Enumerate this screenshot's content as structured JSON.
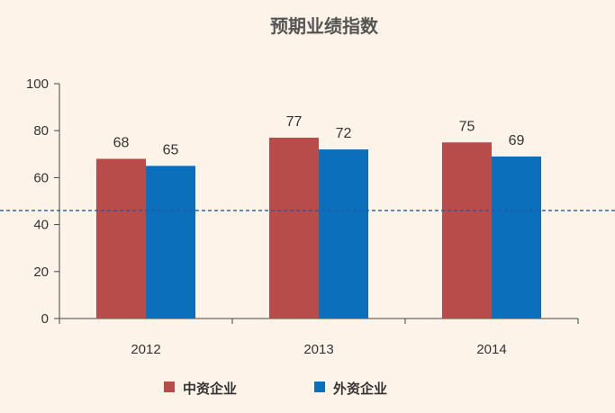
{
  "chart_data": {
    "type": "bar",
    "title": "预期业绩指数",
    "categories": [
      "2012",
      "2013",
      "2014"
    ],
    "series": [
      {
        "name": "中资企业",
        "values": [
          68,
          77,
          75
        ],
        "color": "#b84c4b"
      },
      {
        "name": "外资企业",
        "values": [
          65,
          72,
          69
        ],
        "color": "#0b6fbb"
      }
    ],
    "xlabel": "",
    "ylabel": "",
    "ylim": [
      0,
      100
    ],
    "yticks": [
      0,
      20,
      40,
      60,
      80,
      100
    ],
    "reference_line": {
      "value": 46,
      "color": "#1f5aa6",
      "style": "dashed"
    },
    "grid": false,
    "legend_position": "bottom"
  }
}
